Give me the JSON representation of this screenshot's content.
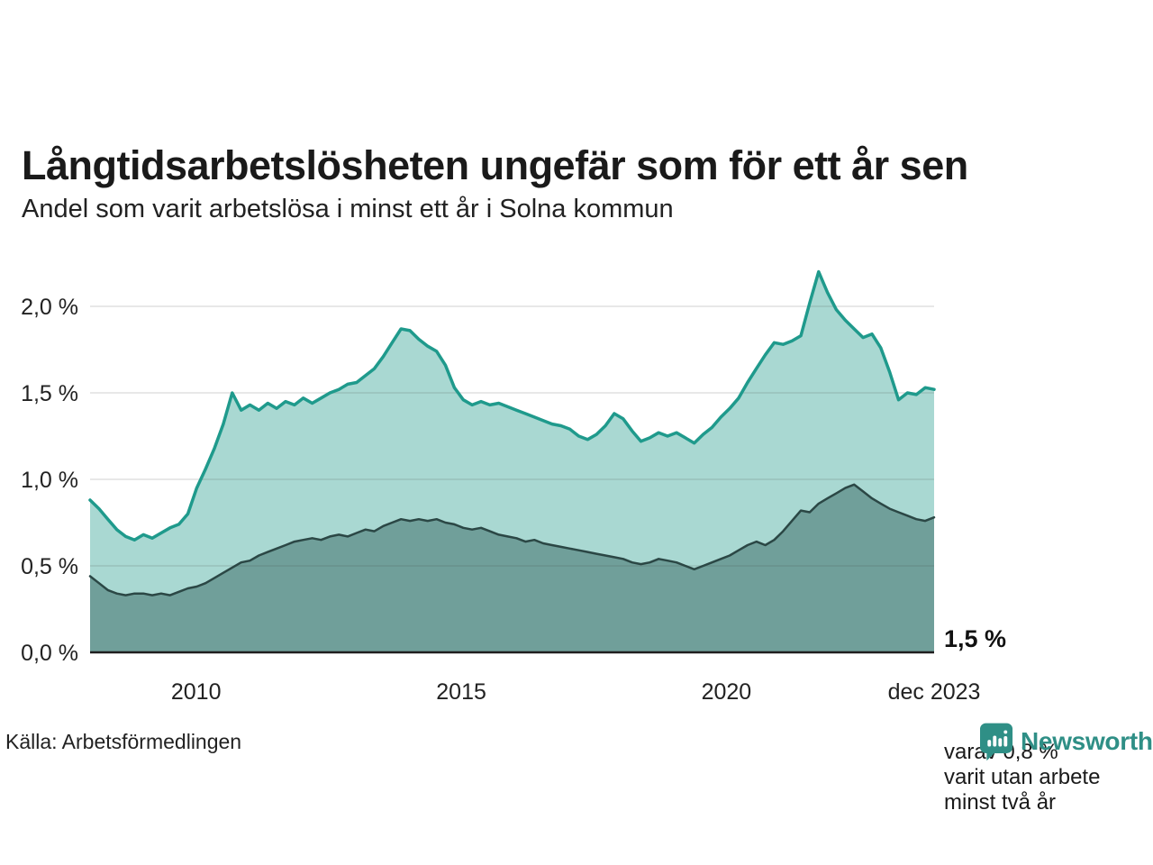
{
  "header": {
    "title": "Långtidsarbetslösheten ungefär som för ett år sen",
    "subtitle": "Andel som varit arbetslösa i minst ett år i Solna kommun"
  },
  "chart_data": {
    "type": "area",
    "title": "Långtidsarbetslösheten ungefär som för ett år sen",
    "subtitle": "Andel som varit arbetslösa i minst ett år i Solna kommun",
    "x_range": [
      2008.0,
      2023.917
    ],
    "ylim": [
      0,
      2.3
    ],
    "grid": true,
    "unit": "%",
    "x_ticks": [
      {
        "label": "2010",
        "pos": 2010.0
      },
      {
        "label": "2015",
        "pos": 2015.0
      },
      {
        "label": "2020",
        "pos": 2020.0
      },
      {
        "label": "dec 2023",
        "pos": 2023.917
      }
    ],
    "y_ticks": [
      {
        "label": "2,0 %",
        "value": 2.0
      },
      {
        "label": "1,5 %",
        "value": 1.5
      },
      {
        "label": "1,0 %",
        "value": 1.0
      },
      {
        "label": "0,5 %",
        "value": 0.5
      },
      {
        "label": "0,0 %",
        "value": 0.0
      }
    ],
    "series": [
      {
        "id": "minst-ett-ar",
        "name": "Andel som varit arbetslösa i minst ett år",
        "color": "#1f9a8c",
        "fill": "#a9d8d2",
        "width": 3.5,
        "end_value": 1.5,
        "values": [
          0.88,
          0.83,
          0.77,
          0.71,
          0.67,
          0.65,
          0.68,
          0.66,
          0.69,
          0.72,
          0.74,
          0.8,
          0.95,
          1.06,
          1.18,
          1.32,
          1.5,
          1.4,
          1.43,
          1.4,
          1.44,
          1.41,
          1.45,
          1.43,
          1.47,
          1.44,
          1.47,
          1.5,
          1.52,
          1.55,
          1.56,
          1.6,
          1.64,
          1.71,
          1.79,
          1.87,
          1.86,
          1.81,
          1.77,
          1.74,
          1.66,
          1.53,
          1.46,
          1.43,
          1.45,
          1.43,
          1.44,
          1.42,
          1.4,
          1.38,
          1.36,
          1.34,
          1.32,
          1.31,
          1.29,
          1.25,
          1.23,
          1.26,
          1.31,
          1.38,
          1.35,
          1.28,
          1.22,
          1.24,
          1.27,
          1.25,
          1.27,
          1.24,
          1.21,
          1.26,
          1.3,
          1.36,
          1.41,
          1.47,
          1.56,
          1.64,
          1.72,
          1.79,
          1.78,
          1.8,
          1.83,
          2.02,
          2.2,
          2.08,
          1.98,
          1.92,
          1.87,
          1.82,
          1.84,
          1.76,
          1.62,
          1.46,
          1.5,
          1.49,
          1.53,
          1.52
        ]
      },
      {
        "id": "minst-tva-ar",
        "name": "varav arbetslösa minst två år",
        "color": "#2b4745",
        "fill": "#709f9a",
        "width": 2.5,
        "end_value": 0.8,
        "values": [
          0.44,
          0.4,
          0.36,
          0.34,
          0.33,
          0.34,
          0.34,
          0.33,
          0.34,
          0.33,
          0.35,
          0.37,
          0.38,
          0.4,
          0.43,
          0.46,
          0.49,
          0.52,
          0.53,
          0.56,
          0.58,
          0.6,
          0.62,
          0.64,
          0.65,
          0.66,
          0.65,
          0.67,
          0.68,
          0.67,
          0.69,
          0.71,
          0.7,
          0.73,
          0.75,
          0.77,
          0.76,
          0.77,
          0.76,
          0.77,
          0.75,
          0.74,
          0.72,
          0.71,
          0.72,
          0.7,
          0.68,
          0.67,
          0.66,
          0.64,
          0.65,
          0.63,
          0.62,
          0.61,
          0.6,
          0.59,
          0.58,
          0.57,
          0.56,
          0.55,
          0.54,
          0.52,
          0.51,
          0.52,
          0.54,
          0.53,
          0.52,
          0.5,
          0.48,
          0.5,
          0.52,
          0.54,
          0.56,
          0.59,
          0.62,
          0.64,
          0.62,
          0.65,
          0.7,
          0.76,
          0.82,
          0.81,
          0.86,
          0.89,
          0.92,
          0.95,
          0.97,
          0.93,
          0.89,
          0.86,
          0.83,
          0.81,
          0.79,
          0.77,
          0.76,
          0.78
        ]
      }
    ],
    "annotations": {
      "value_label": "1,5 %",
      "note_lines": [
        "varav 0,8 %",
        "varit utan arbete",
        "minst två år"
      ]
    }
  },
  "footer": {
    "source": "Källa: Arbetsförmedlingen",
    "brand": "Newsworthy",
    "brand_color": "#2f8f86"
  }
}
